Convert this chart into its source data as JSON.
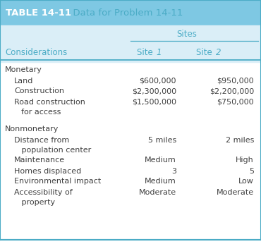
{
  "title_bg_color": "#7ec8e3",
  "title_text": "TABLE 14-11",
  "title_desc": "  Data for Problem 14-11",
  "header_bg_color": "#daeef7",
  "sites_label": "Sites",
  "col_headers": [
    "Considerations",
    "Site 1",
    "Site 2"
  ],
  "title_bold_color": "#ffffff",
  "title_desc_color": "#4bacc6",
  "header_text_color": "#4bacc6",
  "body_text_color": "#404040",
  "line_color": "#4bacc6",
  "border_color": "#4bacc6",
  "rows": [
    {
      "label": "Monetary",
      "indent": 0,
      "site1": "",
      "site2": "",
      "gap_before": false
    },
    {
      "label": "Land",
      "indent": 1,
      "site1": "$600,000",
      "site2": "$950,000",
      "gap_before": false
    },
    {
      "label": "Construction",
      "indent": 1,
      "site1": "$2,300,000",
      "site2": "$2,200,000",
      "gap_before": false
    },
    {
      "label": "Road construction",
      "indent": 1,
      "site1": "$1,500,000",
      "site2": "$750,000",
      "gap_before": false
    },
    {
      "label": "for access",
      "indent": 2,
      "site1": "",
      "site2": "",
      "gap_before": false
    },
    {
      "label": "Nonmonetary",
      "indent": 0,
      "site1": "",
      "site2": "",
      "gap_before": true
    },
    {
      "label": "Distance from",
      "indent": 1,
      "site1": "5 miles",
      "site2": "2 miles",
      "gap_before": false
    },
    {
      "label": "   population center",
      "indent": 1,
      "site1": "",
      "site2": "",
      "gap_before": false
    },
    {
      "label": "Maintenance",
      "indent": 1,
      "site1": "Medium",
      "site2": "High",
      "gap_before": false
    },
    {
      "label": "Homes displaced",
      "indent": 1,
      "site1": "3",
      "site2": "5",
      "gap_before": false
    },
    {
      "label": "Environmental impact",
      "indent": 1,
      "site1": "Medium",
      "site2": "Low",
      "gap_before": false
    },
    {
      "label": "Accessibility of",
      "indent": 1,
      "site1": "Moderate",
      "site2": "Moderate",
      "gap_before": false
    },
    {
      "label": "   property",
      "indent": 1,
      "site1": "",
      "site2": "",
      "gap_before": false
    }
  ]
}
